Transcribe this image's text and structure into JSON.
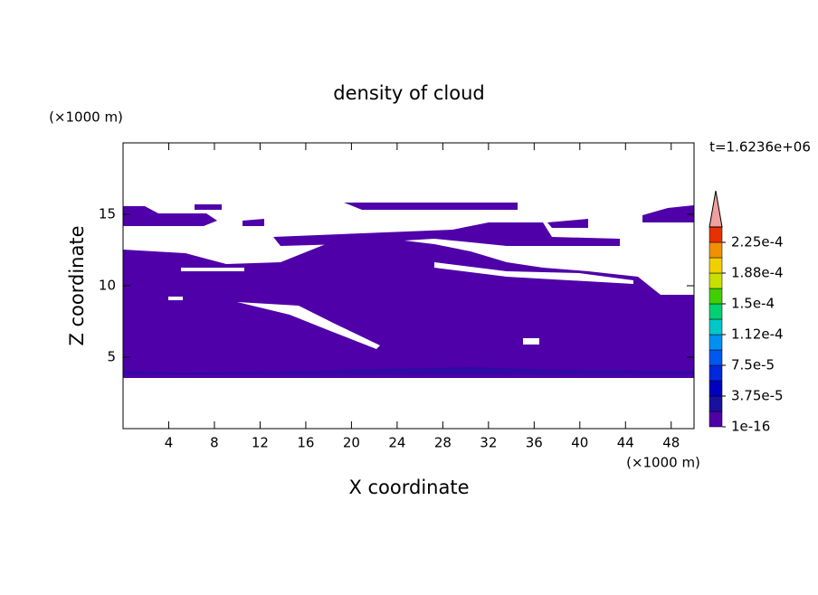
{
  "chart_data": {
    "type": "contour",
    "title": "density of cloud",
    "xlabel": "X coordinate",
    "ylabel": "Z coordinate",
    "x_unit": "(×1000 m)",
    "y_unit": "(×1000 m)",
    "time_label": "t=1.6236e+06",
    "xlim": [
      0,
      50
    ],
    "ylim": [
      0,
      20
    ],
    "xticks": [
      4,
      8,
      12,
      16,
      20,
      24,
      28,
      32,
      36,
      40,
      44,
      48
    ],
    "yticks": [
      5,
      10,
      15
    ],
    "colorbar": {
      "ticks": [
        {
          "value": 1e-16,
          "label": "1e-16"
        },
        {
          "value": 3.75e-05,
          "label": "3.75e-5"
        },
        {
          "value": 7.5e-05,
          "label": "7.5e-5"
        },
        {
          "value": 0.000112,
          "label": "1.12e-4"
        },
        {
          "value": 0.00015,
          "label": "1.5e-4"
        },
        {
          "value": 0.000188,
          "label": "1.88e-4"
        },
        {
          "value": 0.000225,
          "label": "2.25e-4"
        }
      ],
      "colors": [
        "#5000a8",
        "#1a10a0",
        "#0000c0",
        "#0028dc",
        "#0058f0",
        "#0090f0",
        "#00c8c8",
        "#00d070",
        "#40d000",
        "#c8e000",
        "#f0d000",
        "#f09000",
        "#e83000"
      ],
      "extend_color": "#f0a0a0"
    }
  }
}
